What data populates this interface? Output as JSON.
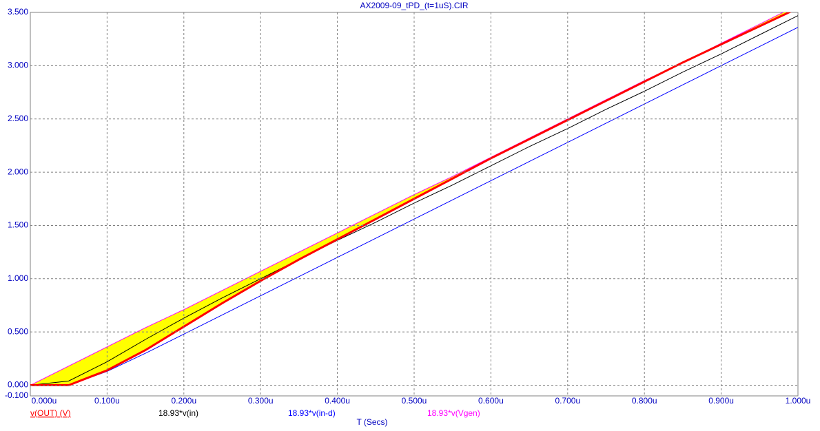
{
  "chart_data": {
    "type": "line",
    "title": "AX2009-09_tPD_(t=1uS).CIR",
    "x_label": "T (Secs)",
    "x": [
      0,
      0.05,
      0.1,
      0.15,
      0.2,
      0.25,
      0.3,
      0.35,
      0.4,
      0.45,
      0.5,
      0.55,
      0.6,
      0.65,
      0.7,
      0.75,
      0.8,
      0.85,
      0.9,
      0.95,
      1.0
    ],
    "series": [
      {
        "name": "v(OUT) (V)",
        "color": "#ff0000",
        "values": [
          0,
          0,
          0.14,
          0.33,
          0.55,
          0.77,
          0.98,
          1.18,
          1.37,
          1.56,
          1.75,
          1.94,
          2.13,
          2.31,
          2.49,
          2.67,
          2.85,
          3.03,
          3.2,
          3.37,
          3.54
        ]
      },
      {
        "name": "18.93*v(in)",
        "color": "#000000",
        "values": [
          0,
          0.04,
          0.22,
          0.43,
          0.63,
          0.82,
          1.0,
          1.18,
          1.36,
          1.53,
          1.71,
          1.88,
          2.06,
          2.24,
          2.41,
          2.59,
          2.76,
          2.94,
          3.11,
          3.29,
          3.47
        ]
      },
      {
        "name": "18.93*v(in-d)",
        "color": "#0000ff",
        "values": [
          0,
          0,
          0.13,
          0.3,
          0.48,
          0.66,
          0.84,
          1.02,
          1.2,
          1.38,
          1.56,
          1.74,
          1.92,
          2.1,
          2.28,
          2.46,
          2.64,
          2.82,
          3.0,
          3.18,
          3.36
        ]
      },
      {
        "name": "18.93*v(Vgen)",
        "color": "#ff00ff",
        "values": [
          0,
          0.18,
          0.36,
          0.54,
          0.71,
          0.89,
          1.07,
          1.25,
          1.43,
          1.61,
          1.79,
          1.96,
          2.14,
          2.32,
          2.5,
          2.68,
          2.86,
          3.03,
          3.21,
          3.39,
          3.57
        ]
      }
    ],
    "fill": {
      "color": "#ffff00",
      "series": [
        3,
        0
      ]
    },
    "xlim": [
      0,
      1.0
    ],
    "xticks": [
      {
        "value": 0,
        "label": "0.000u"
      },
      {
        "value": 0.1,
        "label": "0.100u"
      },
      {
        "value": 0.2,
        "label": "0.200u"
      },
      {
        "value": 0.3,
        "label": "0.300u"
      },
      {
        "value": 0.4,
        "label": "0.400u"
      },
      {
        "value": 0.5,
        "label": "0.500u"
      },
      {
        "value": 0.6,
        "label": "0.600u"
      },
      {
        "value": 0.7,
        "label": "0.700u"
      },
      {
        "value": 0.8,
        "label": "0.800u"
      },
      {
        "value": 0.9,
        "label": "0.900u"
      },
      {
        "value": 1.0,
        "label": "1.000u"
      }
    ],
    "ylim": [
      -0.1,
      3.5
    ],
    "yticks": [
      {
        "value": -0.1,
        "label": "-0.100"
      },
      {
        "value": 0,
        "label": "0.000"
      },
      {
        "value": 0.5,
        "label": "0.500"
      },
      {
        "value": 1.0,
        "label": "1.000"
      },
      {
        "value": 1.5,
        "label": "1.500"
      },
      {
        "value": 2.0,
        "label": "2.000"
      },
      {
        "value": 2.5,
        "label": "2.500"
      },
      {
        "value": 3.0,
        "label": "3.000"
      },
      {
        "value": 3.5,
        "label": "3.500"
      }
    ],
    "grid": true
  }
}
